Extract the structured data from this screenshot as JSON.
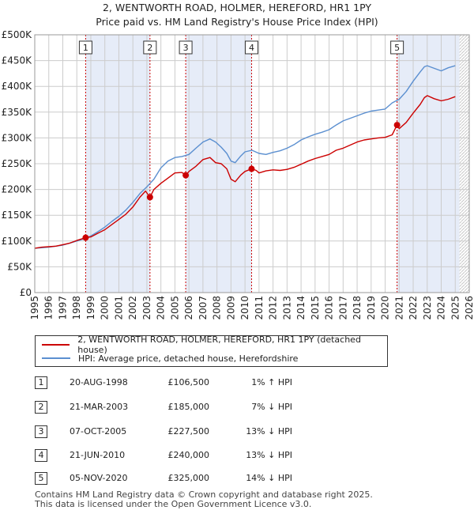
{
  "title": {
    "line1": "2, WENTWORTH ROAD, HOLMER, HEREFORD, HR1 1PY",
    "line2": "Price paid vs. HM Land Registry's House Price Index (HPI)"
  },
  "chart_data": {
    "type": "line",
    "x_range": [
      1995,
      2026
    ],
    "ylim": [
      0,
      500000
    ],
    "y_ticks": [
      {
        "v": 0,
        "label": "£0"
      },
      {
        "v": 50000,
        "label": "£50K"
      },
      {
        "v": 100000,
        "label": "£100K"
      },
      {
        "v": 150000,
        "label": "£150K"
      },
      {
        "v": 200000,
        "label": "£200K"
      },
      {
        "v": 250000,
        "label": "£250K"
      },
      {
        "v": 300000,
        "label": "£300K"
      },
      {
        "v": 350000,
        "label": "£350K"
      },
      {
        "v": 400000,
        "label": "£400K"
      },
      {
        "v": 450000,
        "label": "£450K"
      },
      {
        "v": 500000,
        "label": "£500K"
      }
    ],
    "x_ticks": [
      "1995",
      "1996",
      "1997",
      "1998",
      "1999",
      "2000",
      "2001",
      "2002",
      "2003",
      "2004",
      "2005",
      "2006",
      "2007",
      "2008",
      "2009",
      "2010",
      "2011",
      "2012",
      "2013",
      "2014",
      "2015",
      "2016",
      "2017",
      "2018",
      "2019",
      "2020",
      "2021",
      "2022",
      "2023",
      "2024",
      "2025",
      "2026"
    ],
    "colors": {
      "property": "#cc0000",
      "hpi": "#5b8fd0",
      "shade": "#e6ecf8",
      "grid": "#cccccc",
      "vline": "#cc0000"
    },
    "highlight_spans": [
      [
        1998.63,
        2003.22
      ],
      [
        2005.77,
        2010.47
      ],
      [
        2020.85,
        2025.3
      ]
    ],
    "hatch_from": 2025.3,
    "series": [
      {
        "name": "2, WENTWORTH ROAD, HOLMER, HEREFORD, HR1 1PY (detached house)",
        "key": "property",
        "x": [
          1995.0,
          1995.5,
          1996.0,
          1996.5,
          1997.0,
          1997.5,
          1998.0,
          1998.63,
          1999.0,
          1999.5,
          2000.0,
          2000.5,
          2001.0,
          2001.5,
          2002.0,
          2002.5,
          2002.9,
          2003.22,
          2003.5,
          2004.0,
          2004.5,
          2005.0,
          2005.5,
          2005.77,
          2006.0,
          2006.5,
          2007.0,
          2007.5,
          2007.9,
          2008.3,
          2008.7,
          2009.0,
          2009.3,
          2009.7,
          2010.0,
          2010.47,
          2010.8,
          2011.0,
          2011.5,
          2012.0,
          2012.5,
          2013.0,
          2013.5,
          2014.0,
          2014.5,
          2015.0,
          2015.5,
          2016.0,
          2016.5,
          2017.0,
          2017.5,
          2018.0,
          2018.5,
          2019.0,
          2019.5,
          2020.0,
          2020.5,
          2020.85,
          2021.0,
          2021.5,
          2022.0,
          2022.5,
          2022.8,
          2023.0,
          2023.5,
          2024.0,
          2024.5,
          2025.0
        ],
        "values": [
          86000,
          88000,
          89000,
          90000,
          93000,
          96000,
          101000,
          106500,
          108000,
          115000,
          122000,
          132000,
          142000,
          152000,
          166000,
          185000,
          197000,
          185000,
          200000,
          212000,
          222000,
          232000,
          233000,
          227500,
          235000,
          245000,
          258000,
          262000,
          252000,
          250000,
          240000,
          220000,
          215000,
          228000,
          235000,
          240000,
          237000,
          232000,
          236000,
          238000,
          237000,
          239000,
          243000,
          249000,
          255000,
          260000,
          264000,
          268000,
          276000,
          280000,
          286000,
          292000,
          296000,
          298000,
          300000,
          301000,
          306000,
          325000,
          318000,
          330000,
          348000,
          365000,
          378000,
          382000,
          376000,
          372000,
          375000,
          380000
        ]
      },
      {
        "name": "HPI: Average price, detached house, Herefordshire",
        "key": "hpi",
        "x": [
          1995.0,
          1995.5,
          1996.0,
          1996.5,
          1997.0,
          1997.5,
          1998.0,
          1998.63,
          1999.0,
          1999.5,
          2000.0,
          2000.5,
          2001.0,
          2001.5,
          2002.0,
          2002.5,
          2003.0,
          2003.5,
          2004.0,
          2004.5,
          2005.0,
          2005.5,
          2006.0,
          2006.5,
          2007.0,
          2007.5,
          2007.9,
          2008.3,
          2008.7,
          2009.0,
          2009.3,
          2009.7,
          2010.0,
          2010.5,
          2011.0,
          2011.5,
          2012.0,
          2012.5,
          2013.0,
          2013.5,
          2014.0,
          2014.5,
          2015.0,
          2015.5,
          2016.0,
          2016.5,
          2017.0,
          2017.5,
          2018.0,
          2018.5,
          2019.0,
          2019.5,
          2020.0,
          2020.5,
          2021.0,
          2021.5,
          2022.0,
          2022.5,
          2022.8,
          2023.0,
          2023.5,
          2024.0,
          2024.5,
          2025.0
        ],
        "values": [
          86000,
          87000,
          88000,
          90000,
          92000,
          96000,
          100000,
          105000,
          110000,
          118000,
          127000,
          138000,
          148000,
          160000,
          175000,
          192000,
          205000,
          220000,
          242000,
          255000,
          262000,
          264000,
          268000,
          280000,
          292000,
          298000,
          292000,
          282000,
          270000,
          255000,
          252000,
          265000,
          273000,
          276000,
          270000,
          268000,
          272000,
          275000,
          280000,
          287000,
          296000,
          302000,
          307000,
          311000,
          316000,
          325000,
          333000,
          338000,
          343000,
          348000,
          352000,
          354000,
          356000,
          368000,
          375000,
          390000,
          410000,
          428000,
          438000,
          440000,
          435000,
          430000,
          436000,
          440000
        ]
      }
    ],
    "sales": [
      {
        "num": "1",
        "x": 1998.63,
        "price": 106500
      },
      {
        "num": "2",
        "x": 2003.22,
        "price": 185000
      },
      {
        "num": "3",
        "x": 2005.77,
        "price": 227500
      },
      {
        "num": "4",
        "x": 2010.47,
        "price": 240000
      },
      {
        "num": "5",
        "x": 2020.85,
        "price": 325000
      }
    ]
  },
  "legend": {
    "property_label": "2, WENTWORTH ROAD, HOLMER, HEREFORD, HR1 1PY (detached house)",
    "hpi_label": "HPI: Average price, detached house, Herefordshire"
  },
  "transactions": [
    {
      "num": "1",
      "date": "20-AUG-1998",
      "price": "£106,500",
      "hpi": "1% ↑ HPI"
    },
    {
      "num": "2",
      "date": "21-MAR-2003",
      "price": "£185,000",
      "hpi": "7% ↓ HPI"
    },
    {
      "num": "3",
      "date": "07-OCT-2005",
      "price": "£227,500",
      "hpi": "13% ↓ HPI"
    },
    {
      "num": "4",
      "date": "21-JUN-2010",
      "price": "£240,000",
      "hpi": "13% ↓ HPI"
    },
    {
      "num": "5",
      "date": "05-NOV-2020",
      "price": "£325,000",
      "hpi": "14% ↓ HPI"
    }
  ],
  "footer": {
    "line1": "Contains HM Land Registry data © Crown copyright and database right 2025.",
    "line2": "This data is licensed under the Open Government Licence v3.0."
  }
}
